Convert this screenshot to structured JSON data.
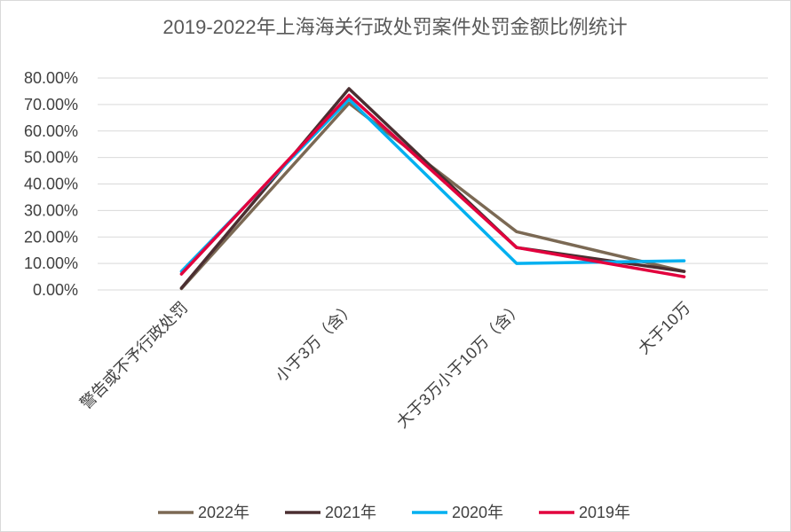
{
  "chart_data": {
    "type": "line",
    "title": "2019-2022年上海海关行政处罚案件处罚金额比例统计",
    "xlabel": "",
    "ylabel": "",
    "categories": [
      "警告或不予行政处罚",
      "小于3万（含）",
      "大于3万小于10万（含）",
      "大于10万"
    ],
    "series": [
      {
        "name": "2022年",
        "color": "#7b6954",
        "values": [
          0.5,
          70.5,
          22.0,
          7.0
        ]
      },
      {
        "name": "2021年",
        "color": "#4b2f31",
        "values": [
          0.7,
          76.0,
          16.0,
          7.0
        ]
      },
      {
        "name": "2020年",
        "color": "#00b0f0",
        "values": [
          7.0,
          72.0,
          10.0,
          11.0
        ]
      },
      {
        "name": "2019年",
        "color": "#e2003d",
        "values": [
          6.0,
          73.5,
          16.0,
          5.0
        ]
      }
    ],
    "ylim": [
      0,
      80
    ],
    "y_ticks": [
      0,
      10,
      20,
      30,
      40,
      50,
      60,
      70,
      80
    ],
    "y_tick_labels": [
      "0.00%",
      "10.00%",
      "20.00%",
      "30.00%",
      "40.00%",
      "50.00%",
      "60.00%",
      "70.00%",
      "80.00%"
    ],
    "grid": true,
    "legend_position": "bottom"
  }
}
